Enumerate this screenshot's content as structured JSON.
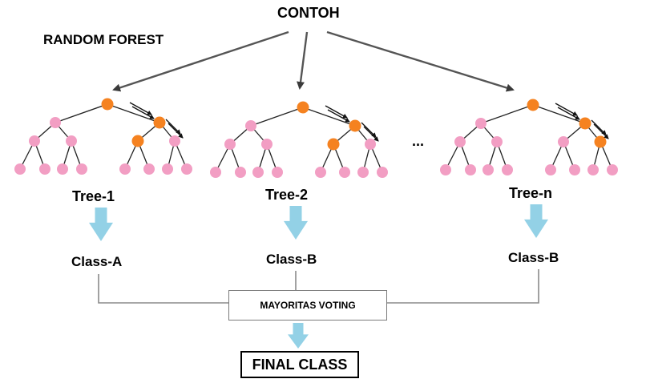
{
  "title": "CONTOH",
  "subtitle": "RANDOM FOREST",
  "ellipsis": "...",
  "trees": [
    {
      "label": "Tree-1",
      "class_label": "Class-A"
    },
    {
      "label": "Tree-2",
      "class_label": "Class-B"
    },
    {
      "label": "Tree-n",
      "class_label": "Class-B"
    }
  ],
  "voting_label": "MAYORITAS VOTING",
  "final_label": "FINAL CLASS",
  "colors": {
    "active_node": "#f58220",
    "leaf_node": "#f29ec3",
    "down_arrow": "#93d1e6",
    "edge": "#222222",
    "connector": "#8a8a8a"
  }
}
